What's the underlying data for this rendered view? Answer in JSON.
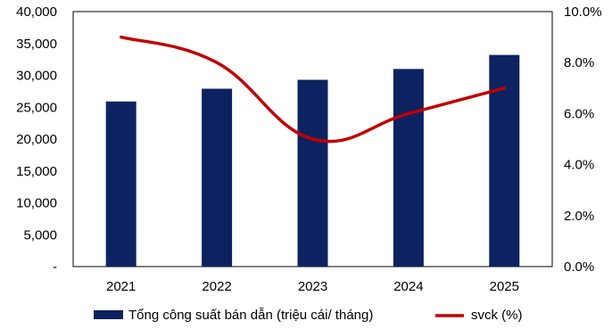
{
  "chart_data": {
    "type": "bar",
    "categories": [
      "2021",
      "2022",
      "2023",
      "2024",
      "2025"
    ],
    "series": [
      {
        "name": "Tổng công suất bán dẫn (triệu cái/ tháng)",
        "type": "bar",
        "axis": "left",
        "color": "#0d2260",
        "values": [
          25900,
          27900,
          29300,
          31000,
          33200
        ]
      },
      {
        "name": "svck (%)",
        "type": "line",
        "axis": "right",
        "color": "#c00000",
        "values": [
          9.0,
          8.0,
          5.0,
          6.0,
          7.0
        ]
      }
    ],
    "y_left": {
      "ylim": [
        0,
        40000
      ],
      "ticks": [
        0,
        5000,
        10000,
        15000,
        20000,
        25000,
        30000,
        35000,
        40000
      ],
      "tick_labels": [
        "-",
        "5,000",
        "10,000",
        "15,000",
        "20,000",
        "25,000",
        "30,000",
        "35,000",
        "40,000"
      ]
    },
    "y_right": {
      "ylim": [
        0,
        10
      ],
      "ticks": [
        0,
        2,
        4,
        6,
        8,
        10
      ],
      "tick_labels": [
        "0.0%",
        "2.0%",
        "4.0%",
        "6.0%",
        "8.0%",
        "10.0%"
      ]
    },
    "legend_position": "bottom",
    "grid": false
  }
}
